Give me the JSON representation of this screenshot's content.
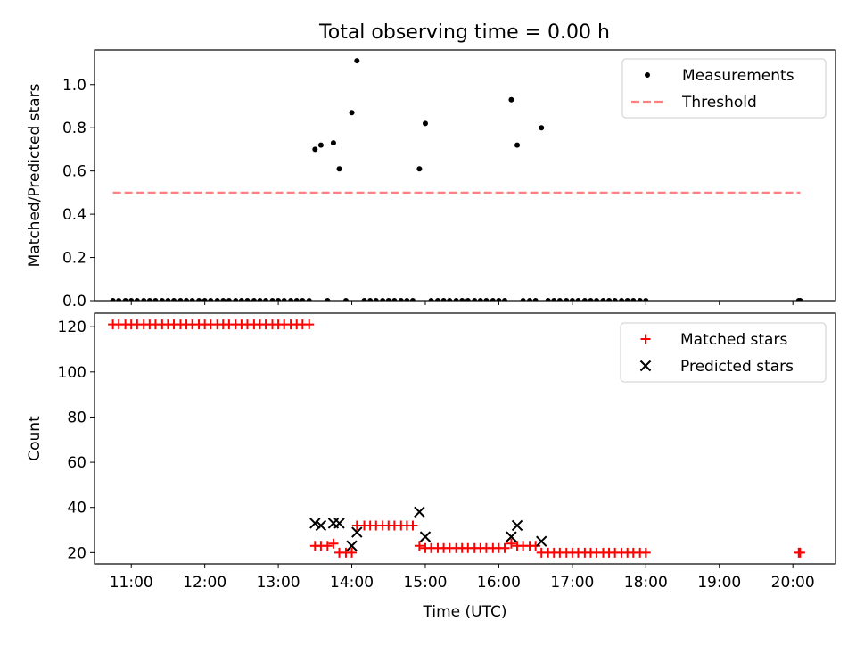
{
  "title": "Total observing time = 0.00 h",
  "chart_data": [
    {
      "type": "scatter",
      "ylabel": "Matched/Predicted stars",
      "xlabel": "",
      "xlim": [
        10.5,
        20.58
      ],
      "ylim": [
        0.0,
        1.16
      ],
      "yticks": [
        0.0,
        0.2,
        0.4,
        0.6,
        0.8,
        1.0
      ],
      "ytick_labels": [
        "0.0",
        "0.2",
        "0.4",
        "0.6",
        "0.8",
        "1.0"
      ],
      "legend_position": "upper right",
      "series": [
        {
          "name": "Measurements",
          "kind": "points",
          "color": "#000000",
          "points": [
            [
              10.75,
              0
            ],
            [
              10.83,
              0
            ],
            [
              10.92,
              0
            ],
            [
              11.0,
              0
            ],
            [
              11.08,
              0
            ],
            [
              11.17,
              0
            ],
            [
              11.25,
              0
            ],
            [
              11.33,
              0
            ],
            [
              11.42,
              0
            ],
            [
              11.5,
              0
            ],
            [
              11.58,
              0
            ],
            [
              11.67,
              0
            ],
            [
              11.75,
              0
            ],
            [
              11.83,
              0
            ],
            [
              11.92,
              0
            ],
            [
              12.0,
              0
            ],
            [
              12.08,
              0
            ],
            [
              12.17,
              0
            ],
            [
              12.25,
              0
            ],
            [
              12.33,
              0
            ],
            [
              12.42,
              0
            ],
            [
              12.5,
              0
            ],
            [
              12.58,
              0
            ],
            [
              12.67,
              0
            ],
            [
              12.75,
              0
            ],
            [
              12.83,
              0
            ],
            [
              12.92,
              0
            ],
            [
              13.0,
              0
            ],
            [
              13.08,
              0
            ],
            [
              13.17,
              0
            ],
            [
              13.25,
              0
            ],
            [
              13.33,
              0
            ],
            [
              13.42,
              0
            ],
            [
              13.5,
              0.7
            ],
            [
              13.58,
              0.72
            ],
            [
              13.67,
              0
            ],
            [
              13.75,
              0.73
            ],
            [
              13.83,
              0.61
            ],
            [
              13.92,
              0
            ],
            [
              14.0,
              0.87
            ],
            [
              14.07,
              1.11
            ],
            [
              14.17,
              0
            ],
            [
              14.25,
              0
            ],
            [
              14.33,
              0
            ],
            [
              14.42,
              0
            ],
            [
              14.5,
              0
            ],
            [
              14.58,
              0
            ],
            [
              14.67,
              0
            ],
            [
              14.75,
              0
            ],
            [
              14.83,
              0
            ],
            [
              14.92,
              0.61
            ],
            [
              15.0,
              0.82
            ],
            [
              15.08,
              0
            ],
            [
              15.17,
              0
            ],
            [
              15.25,
              0
            ],
            [
              15.33,
              0
            ],
            [
              15.42,
              0
            ],
            [
              15.5,
              0
            ],
            [
              15.58,
              0
            ],
            [
              15.67,
              0
            ],
            [
              15.75,
              0
            ],
            [
              15.83,
              0
            ],
            [
              15.92,
              0
            ],
            [
              16.0,
              0
            ],
            [
              16.08,
              0
            ],
            [
              16.17,
              0.93
            ],
            [
              16.25,
              0.72
            ],
            [
              16.33,
              0
            ],
            [
              16.42,
              0
            ],
            [
              16.5,
              0
            ],
            [
              16.58,
              0.8
            ],
            [
              16.67,
              0
            ],
            [
              16.75,
              0
            ],
            [
              16.83,
              0
            ],
            [
              16.92,
              0
            ],
            [
              17.0,
              0
            ],
            [
              17.08,
              0
            ],
            [
              17.17,
              0
            ],
            [
              17.25,
              0
            ],
            [
              17.33,
              0
            ],
            [
              17.42,
              0
            ],
            [
              17.5,
              0
            ],
            [
              17.58,
              0
            ],
            [
              17.67,
              0
            ],
            [
              17.75,
              0
            ],
            [
              17.83,
              0
            ],
            [
              17.92,
              0
            ],
            [
              18.0,
              0
            ],
            [
              20.08,
              0
            ],
            [
              20.1,
              0
            ]
          ]
        },
        {
          "name": "Threshold",
          "kind": "dashed-line",
          "color": "#ff8080",
          "points": [
            [
              10.75,
              0.5
            ],
            [
              20.1,
              0.5
            ]
          ]
        }
      ]
    },
    {
      "type": "scatter",
      "ylabel": "Count",
      "xlabel": "Time (UTC)",
      "xlim": [
        10.5,
        20.58
      ],
      "ylim": [
        15,
        126
      ],
      "yticks": [
        20,
        40,
        60,
        80,
        100,
        120
      ],
      "ytick_labels": [
        "20",
        "40",
        "60",
        "80",
        "100",
        "120"
      ],
      "xticks": [
        11,
        12,
        13,
        14,
        15,
        16,
        17,
        18,
        19,
        20
      ],
      "xtick_labels": [
        "11:00",
        "12:00",
        "13:00",
        "14:00",
        "15:00",
        "16:00",
        "17:00",
        "18:00",
        "19:00",
        "20:00"
      ],
      "legend_position": "upper right",
      "series": [
        {
          "name": "Matched stars",
          "kind": "plus",
          "color": "#ff0000",
          "points": [
            [
              10.75,
              121
            ],
            [
              10.83,
              121
            ],
            [
              10.92,
              121
            ],
            [
              11.0,
              121
            ],
            [
              11.08,
              121
            ],
            [
              11.17,
              121
            ],
            [
              11.25,
              121
            ],
            [
              11.33,
              121
            ],
            [
              11.42,
              121
            ],
            [
              11.5,
              121
            ],
            [
              11.58,
              121
            ],
            [
              11.67,
              121
            ],
            [
              11.75,
              121
            ],
            [
              11.83,
              121
            ],
            [
              11.92,
              121
            ],
            [
              12.0,
              121
            ],
            [
              12.08,
              121
            ],
            [
              12.17,
              121
            ],
            [
              12.25,
              121
            ],
            [
              12.33,
              121
            ],
            [
              12.42,
              121
            ],
            [
              12.5,
              121
            ],
            [
              12.58,
              121
            ],
            [
              12.67,
              121
            ],
            [
              12.75,
              121
            ],
            [
              12.83,
              121
            ],
            [
              12.92,
              121
            ],
            [
              13.0,
              121
            ],
            [
              13.08,
              121
            ],
            [
              13.17,
              121
            ],
            [
              13.25,
              121
            ],
            [
              13.33,
              121
            ],
            [
              13.42,
              121
            ],
            [
              13.5,
              23
            ],
            [
              13.58,
              23
            ],
            [
              13.67,
              23
            ],
            [
              13.75,
              24
            ],
            [
              13.83,
              20
            ],
            [
              13.92,
              20
            ],
            [
              14.0,
              20
            ],
            [
              14.07,
              32
            ],
            [
              14.17,
              32
            ],
            [
              14.25,
              32
            ],
            [
              14.33,
              32
            ],
            [
              14.42,
              32
            ],
            [
              14.5,
              32
            ],
            [
              14.58,
              32
            ],
            [
              14.67,
              32
            ],
            [
              14.75,
              32
            ],
            [
              14.83,
              32
            ],
            [
              14.92,
              23
            ],
            [
              15.0,
              22
            ],
            [
              15.08,
              22
            ],
            [
              15.17,
              22
            ],
            [
              15.25,
              22
            ],
            [
              15.33,
              22
            ],
            [
              15.42,
              22
            ],
            [
              15.5,
              22
            ],
            [
              15.58,
              22
            ],
            [
              15.67,
              22
            ],
            [
              15.75,
              22
            ],
            [
              15.83,
              22
            ],
            [
              15.92,
              22
            ],
            [
              16.0,
              22
            ],
            [
              16.08,
              22
            ],
            [
              16.17,
              24
            ],
            [
              16.25,
              23
            ],
            [
              16.33,
              23
            ],
            [
              16.42,
              23
            ],
            [
              16.5,
              23
            ],
            [
              16.58,
              20
            ],
            [
              16.67,
              20
            ],
            [
              16.75,
              20
            ],
            [
              16.83,
              20
            ],
            [
              16.92,
              20
            ],
            [
              17.0,
              20
            ],
            [
              17.08,
              20
            ],
            [
              17.17,
              20
            ],
            [
              17.25,
              20
            ],
            [
              17.33,
              20
            ],
            [
              17.42,
              20
            ],
            [
              17.5,
              20
            ],
            [
              17.58,
              20
            ],
            [
              17.67,
              20
            ],
            [
              17.75,
              20
            ],
            [
              17.83,
              20
            ],
            [
              17.92,
              20
            ],
            [
              18.0,
              20
            ],
            [
              20.08,
              20
            ],
            [
              20.1,
              20
            ]
          ]
        },
        {
          "name": "Predicted stars",
          "kind": "cross",
          "color": "#000000",
          "points": [
            [
              13.5,
              33
            ],
            [
              13.58,
              32
            ],
            [
              13.75,
              33
            ],
            [
              13.83,
              33
            ],
            [
              14.0,
              23
            ],
            [
              14.07,
              29
            ],
            [
              14.92,
              38
            ],
            [
              15.0,
              27
            ],
            [
              16.17,
              27
            ],
            [
              16.25,
              32
            ],
            [
              16.58,
              25
            ]
          ]
        }
      ]
    }
  ]
}
